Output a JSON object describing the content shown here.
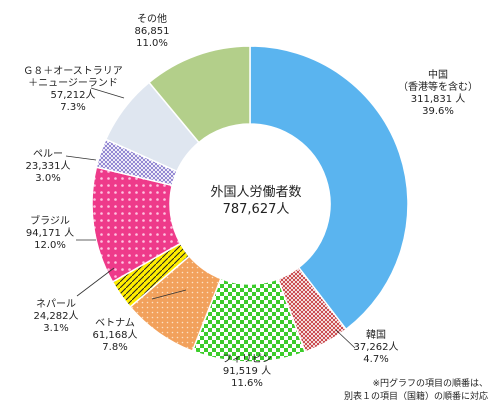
{
  "chart_data": {
    "type": "pie",
    "center_label": "外国人労働者数",
    "center_value": "787,627人",
    "slices": [
      {
        "name": "中国",
        "sub": "（香港等を含む）",
        "count": "311,831 人",
        "value": 311831,
        "percent": "39.6%",
        "color": "#5ab4ef",
        "pattern": "solid"
      },
      {
        "name": "韓国",
        "count": "37,262人",
        "value": 37262,
        "percent": "4.7%",
        "color": "#c0282d",
        "pattern": "crosshatch"
      },
      {
        "name": "フィリピン",
        "count": "91,519 人",
        "value": 91519,
        "percent": "11.6%",
        "color": "#3ccc2b",
        "pattern": "checker"
      },
      {
        "name": "ベトナム",
        "count": "61,168人",
        "value": 61168,
        "percent": "7.8%",
        "color": "#f2a15c",
        "pattern": "dots"
      },
      {
        "name": "ネパール",
        "count": "24,282人",
        "value": 24282,
        "percent": "3.1%",
        "color": "#ffee00",
        "pattern": "diagonal"
      },
      {
        "name": "ブラジル",
        "count": "94,171 人",
        "value": 94171,
        "percent": "12.0%",
        "color": "#ee3a8a",
        "pattern": "polka"
      },
      {
        "name": "ペルー",
        "count": "23,331人",
        "value": 23331,
        "percent": "3.0%",
        "color": "#6f5fc4",
        "pattern": "grid"
      },
      {
        "name": "Ｇ８＋オーストラリア＋ニュージーランド",
        "count": "57,212人",
        "value": 57212,
        "percent": "7.3%",
        "color": "#dfe6f0",
        "pattern": "solid"
      },
      {
        "name": "その他",
        "count": "86,851",
        "value": 86851,
        "percent": "11.0%",
        "color": "#b3cf8a",
        "pattern": "solid"
      }
    ]
  },
  "labels": {
    "china": {
      "line1": "中国",
      "line2": "（香港等を含む）",
      "line3": "311,831 人",
      "line4": "39.6%"
    },
    "korea": {
      "line1": "韓国",
      "line2": "37,262人",
      "line3": "4.7%"
    },
    "philippines": {
      "line1": "フィリピン",
      "line2": "91,519 人",
      "line3": "11.6%"
    },
    "vietnam": {
      "line1": "ベトナム",
      "line2": "61,168人",
      "line3": "7.8%"
    },
    "nepal": {
      "line1": "ネパール",
      "line2": "24,282人",
      "line3": "3.1%"
    },
    "brazil": {
      "line1": "ブラジル",
      "line2": "94,171 人",
      "line3": "12.0%"
    },
    "peru": {
      "line1": "ペルー",
      "line2": "23,331人",
      "line3": "3.0%"
    },
    "g8": {
      "line1": "Ｇ８＋オーストラリア",
      "line2": "＋ニュージーランド",
      "line3": "57,212人",
      "line4": "7.3%"
    },
    "other": {
      "line1": "その他",
      "line2": "86,851",
      "line3": "11.0%"
    }
  },
  "notes": {
    "line1": "※円グラフの項目の順番は、",
    "line2": "別表１の項目（国籍）の順番に対応"
  }
}
